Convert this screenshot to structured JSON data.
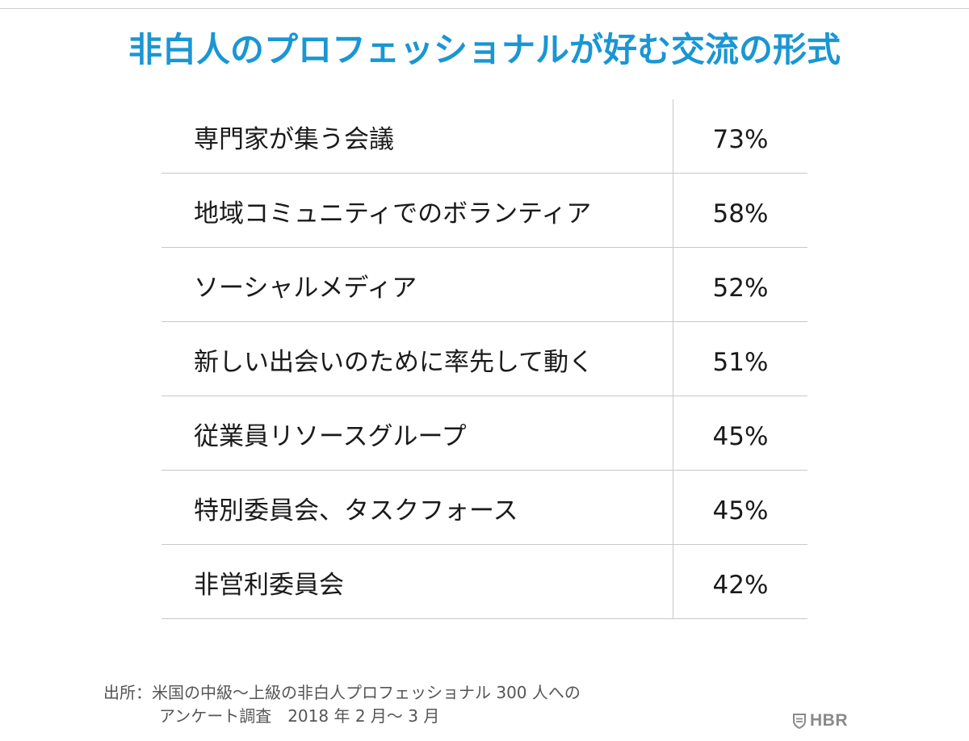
{
  "title": "非白人のプロフェッショナルが好む交流の形式",
  "colors": {
    "title": "#1a96d4",
    "text": "#1a1a1a",
    "rule": "#c8c8c8",
    "source": "#555555",
    "logo": "#8a8a8a"
  },
  "chart_data": {
    "type": "table",
    "title": "非白人のプロフェッショナルが好む交流の形式",
    "rows": [
      {
        "label": "専門家が集う会議",
        "value": "73%",
        "percent": 73
      },
      {
        "label": "地域コミュニティでのボランティア",
        "value": "58%",
        "percent": 58
      },
      {
        "label": "ソーシャルメディア",
        "value": "52%",
        "percent": 52
      },
      {
        "label": "新しい出会いのために率先して動く",
        "value": "51%",
        "percent": 51
      },
      {
        "label": "従業員リソースグループ",
        "value": "45%",
        "percent": 45
      },
      {
        "label": "特別委員会、タスクフォース",
        "value": "45%",
        "percent": 45
      },
      {
        "label": "非営利委員会",
        "value": "42%",
        "percent": 42
      }
    ]
  },
  "source": {
    "line1": "出所：米国の中級～上級の非白人プロフェッショナル 300 人への",
    "line2": "アンケート調査　2018 年 2 月～ 3 月"
  },
  "logo": {
    "text": "HBR",
    "icon": "hbr-shield-icon"
  }
}
